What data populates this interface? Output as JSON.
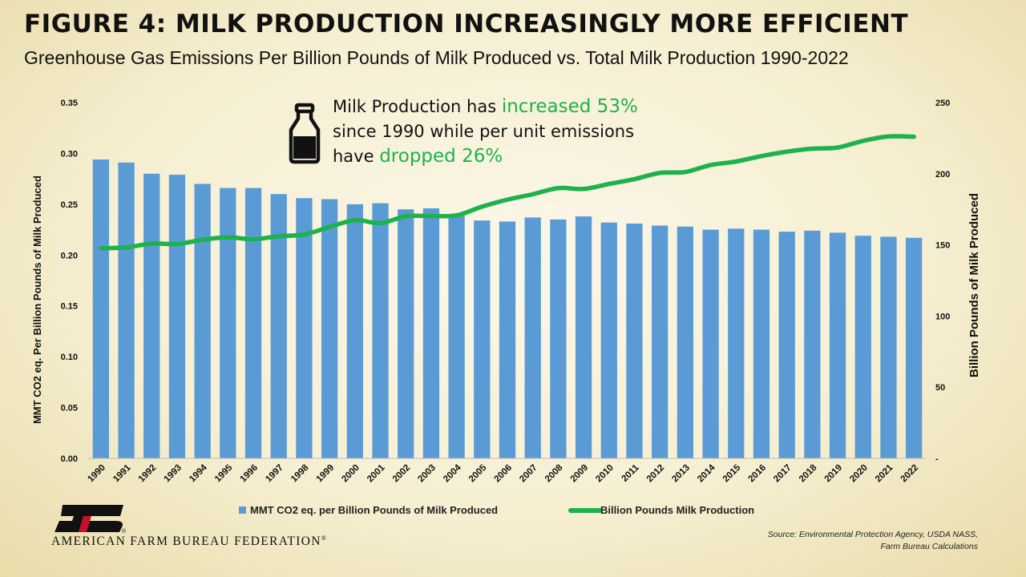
{
  "header": {
    "title": "FIGURE 4: MILK PRODUCTION INCREASINGLY MORE EFFICIENT",
    "subtitle": "Greenhouse Gas Emissions Per Billion Pounds of Milk Produced vs. Total Milk Production 1990-2022"
  },
  "callout": {
    "line1_text": "Milk Production has ",
    "line1_highlight": "increased 53%",
    "line2_text": "since 1990 while per unit emissions",
    "line3_text": "have ",
    "line3_highlight": "dropped 26%",
    "icon": "milk-bottle-icon",
    "highlight_color": "#1db24b"
  },
  "chart_data": {
    "type": "bar",
    "categories": [
      "1990",
      "1991",
      "1992",
      "1993",
      "1994",
      "1995",
      "1996",
      "1997",
      "1998",
      "1999",
      "2000",
      "2001",
      "2002",
      "2003",
      "2004",
      "2005",
      "2006",
      "2007",
      "2008",
      "2009",
      "2010",
      "2011",
      "2012",
      "2013",
      "2014",
      "2015",
      "2016",
      "2017",
      "2018",
      "2019",
      "2020",
      "2021",
      "2022"
    ],
    "series": [
      {
        "name": "MMT CO2 eq. per Billion Pounds of Milk Produced",
        "type": "bar",
        "axis": "left",
        "color": "#5b9bd5",
        "values": [
          0.294,
          0.291,
          0.28,
          0.279,
          0.27,
          0.266,
          0.266,
          0.26,
          0.256,
          0.255,
          0.25,
          0.251,
          0.245,
          0.246,
          0.24,
          0.234,
          0.233,
          0.237,
          0.235,
          0.238,
          0.232,
          0.231,
          0.229,
          0.228,
          0.225,
          0.226,
          0.225,
          0.223,
          0.224,
          0.222,
          0.219,
          0.218,
          0.217
        ]
      },
      {
        "name": "Billion Pounds Milk Production",
        "type": "line",
        "axis": "right",
        "color": "#1db24b",
        "values": [
          147.7,
          148.2,
          150.9,
          150.6,
          153.6,
          155.3,
          154.0,
          156.1,
          157.3,
          162.6,
          167.4,
          165.3,
          170.1,
          170.3,
          170.8,
          176.9,
          181.8,
          185.6,
          189.9,
          189.3,
          192.8,
          196.2,
          200.6,
          201.2,
          206.1,
          208.6,
          212.4,
          215.5,
          217.6,
          218.4,
          223.1,
          226.2,
          226.0
        ]
      }
    ],
    "y_left": {
      "label": "MMT CO2 eq. Per Billion Pounds of Milk Produced",
      "min": 0,
      "max": 0.35,
      "step": 0.05,
      "tick_labels": [
        "0.00",
        "0.05",
        "0.10",
        "0.15",
        "0.20",
        "0.25",
        "0.30",
        "0.35"
      ]
    },
    "y_right": {
      "label": "Billion Pounds of Milk Produced",
      "min": 0,
      "max": 250,
      "step": 50,
      "tick_labels": [
        "-",
        "50",
        "100",
        "150",
        "200",
        "250"
      ]
    },
    "legend_position": "bottom",
    "grid": false
  },
  "footer": {
    "org_name": "AMERICAN FARM BUREAU FEDERATION",
    "org_mark": "®",
    "logo_name": "farm-bureau-logo",
    "source_line1": "Source: Environmental Protection Agency, USDA NASS,",
    "source_line2": "Farm Bureau Calculations"
  }
}
